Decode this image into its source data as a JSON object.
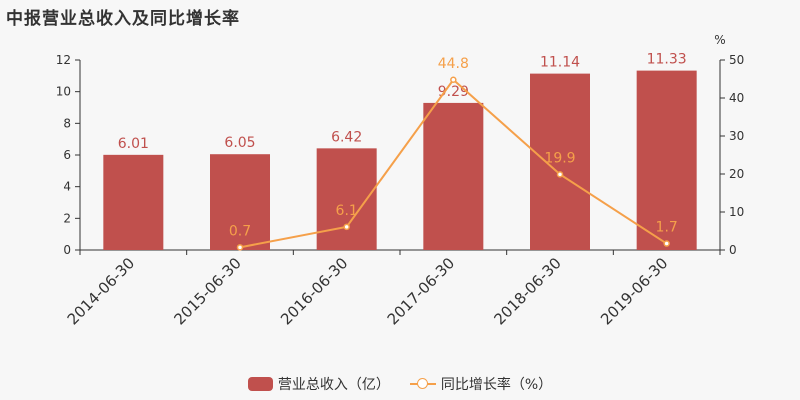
{
  "title": "中报营业总收入及同比增长率",
  "colors": {
    "bar": "#c0504d",
    "line": "#f5a04a",
    "axis": "#333333",
    "background": "#f7f7f7"
  },
  "chart_data": {
    "type": "bar",
    "categories": [
      "2014-06-30",
      "2015-06-30",
      "2016-06-30",
      "2017-06-30",
      "2018-06-30",
      "2019-06-30"
    ],
    "series": [
      {
        "name": "营业总收入（亿）",
        "type": "bar",
        "axis": "left",
        "values": [
          6.01,
          6.05,
          6.42,
          9.29,
          11.14,
          11.33
        ],
        "labels": [
          "6.01",
          "6.05",
          "6.42",
          "9.29",
          "11.14",
          "11.33"
        ]
      },
      {
        "name": "同比增长率（%）",
        "type": "line",
        "axis": "right",
        "values": [
          null,
          0.7,
          6.1,
          44.8,
          19.9,
          1.7
        ],
        "labels": [
          "",
          "0.7",
          "6.1",
          "44.8",
          "19.9",
          "1.7"
        ]
      }
    ],
    "y_left": {
      "min": 0,
      "max": 12,
      "ticks": [
        "0",
        "2",
        "4",
        "6",
        "8",
        "10",
        "12"
      ]
    },
    "y_right": {
      "min": 0,
      "max": 50,
      "ticks": [
        "0",
        "10",
        "20",
        "30",
        "40",
        "50"
      ],
      "unit": "%"
    },
    "grid": false,
    "legend_position": "bottom-center"
  },
  "legend": {
    "bar_label": "营业总收入（亿）",
    "line_label": "同比增长率（%）"
  }
}
